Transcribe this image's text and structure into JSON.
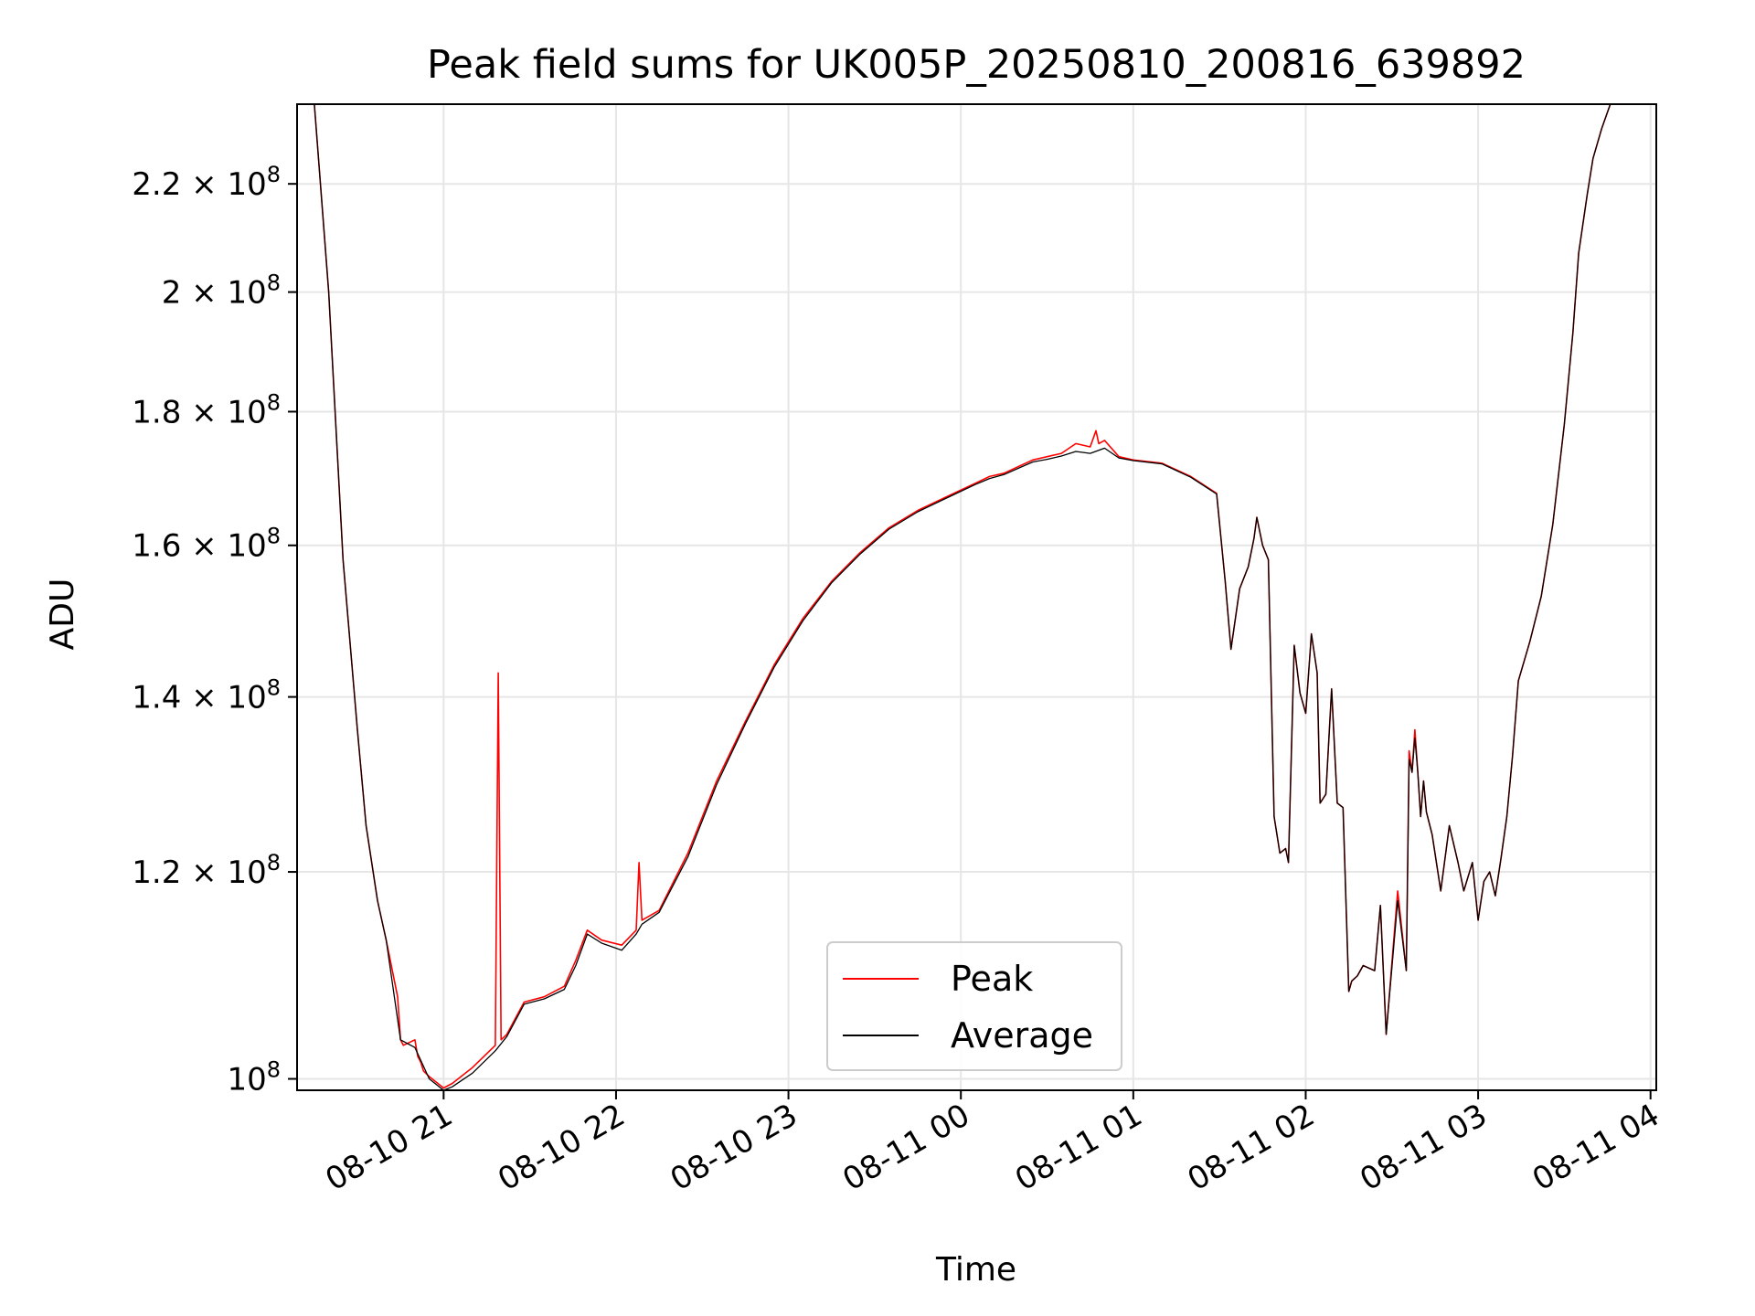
{
  "chart_data": {
    "type": "line",
    "title": "Peak field sums for UK005P_20250810_200816_639892",
    "xlabel": "Time",
    "ylabel": "ADU",
    "yscale": "log",
    "grid": true,
    "legend_position": "lower center",
    "xlim": [
      "2025-08-10 20:09",
      "2025-08-11 04:02"
    ],
    "ylim": [
      99000000,
      236000000
    ],
    "x_ticks": [
      {
        "t": "2025-08-10 21:00",
        "label": "08-10 21"
      },
      {
        "t": "2025-08-10 22:00",
        "label": "08-10 22"
      },
      {
        "t": "2025-08-10 23:00",
        "label": "08-10 23"
      },
      {
        "t": "2025-08-11 00:00",
        "label": "08-11 00"
      },
      {
        "t": "2025-08-11 01:00",
        "label": "08-11 01"
      },
      {
        "t": "2025-08-11 02:00",
        "label": "08-11 02"
      },
      {
        "t": "2025-08-11 03:00",
        "label": "08-11 03"
      },
      {
        "t": "2025-08-11 04:00",
        "label": "08-11 04"
      }
    ],
    "y_ticks": [
      {
        "v": 100000000,
        "mantissa": "",
        "exp": "8"
      },
      {
        "v": 120000000,
        "mantissa": "1.2",
        "exp": "8"
      },
      {
        "v": 140000000,
        "mantissa": "1.4",
        "exp": "8"
      },
      {
        "v": 160000000,
        "mantissa": "1.6",
        "exp": "8"
      },
      {
        "v": 180000000,
        "mantissa": "1.8",
        "exp": "8"
      },
      {
        "v": 200000000,
        "mantissa": "2",
        "exp": "8"
      },
      {
        "v": 220000000,
        "mantissa": "2.2",
        "exp": "8"
      }
    ],
    "series": [
      {
        "name": "Peak",
        "color": "#ff0000",
        "x": [
          "2025-08-10 20:09",
          "2025-08-10 20:12",
          "2025-08-10 20:15",
          "2025-08-10 20:20",
          "2025-08-10 20:25",
          "2025-08-10 20:30",
          "2025-08-10 20:33",
          "2025-08-10 20:37",
          "2025-08-10 20:40",
          "2025-08-10 20:44",
          "2025-08-10 20:45",
          "2025-08-10 20:46",
          "2025-08-10 20:50",
          "2025-08-10 20:51",
          "2025-08-10 20:52",
          "2025-08-10 20:53",
          "2025-08-10 20:55",
          "2025-08-10 21:00",
          "2025-08-10 21:03",
          "2025-08-10 21:10",
          "2025-08-10 21:18",
          "2025-08-10 21:19",
          "2025-08-10 21:20",
          "2025-08-10 21:22",
          "2025-08-10 21:28",
          "2025-08-10 21:35",
          "2025-08-10 21:42",
          "2025-08-10 21:46",
          "2025-08-10 21:50",
          "2025-08-10 21:55",
          "2025-08-10 22:02",
          "2025-08-10 22:07",
          "2025-08-10 22:08",
          "2025-08-10 22:09",
          "2025-08-10 22:15",
          "2025-08-10 22:25",
          "2025-08-10 22:35",
          "2025-08-10 22:45",
          "2025-08-10 22:55",
          "2025-08-10 23:05",
          "2025-08-10 23:15",
          "2025-08-10 23:25",
          "2025-08-10 23:35",
          "2025-08-10 23:45",
          "2025-08-10 23:55",
          "2025-08-11 00:05",
          "2025-08-11 00:10",
          "2025-08-11 00:15",
          "2025-08-11 00:25",
          "2025-08-11 00:30",
          "2025-08-11 00:35",
          "2025-08-11 00:40",
          "2025-08-11 00:45",
          "2025-08-11 00:47",
          "2025-08-11 00:48",
          "2025-08-11 00:50",
          "2025-08-11 00:55",
          "2025-08-11 01:00",
          "2025-08-11 01:10",
          "2025-08-11 01:20",
          "2025-08-11 01:29",
          "2025-08-11 01:32",
          "2025-08-11 01:34",
          "2025-08-11 01:37",
          "2025-08-11 01:40",
          "2025-08-11 01:42",
          "2025-08-11 01:43",
          "2025-08-11 01:45",
          "2025-08-11 01:47",
          "2025-08-11 01:49",
          "2025-08-11 01:51",
          "2025-08-11 01:53",
          "2025-08-11 01:54",
          "2025-08-11 01:56",
          "2025-08-11 01:58",
          "2025-08-11 02:00",
          "2025-08-11 02:02",
          "2025-08-11 02:04",
          "2025-08-11 02:05",
          "2025-08-11 02:07",
          "2025-08-11 02:09",
          "2025-08-11 02:11",
          "2025-08-11 02:13",
          "2025-08-11 02:15",
          "2025-08-11 02:16",
          "2025-08-11 02:18",
          "2025-08-11 02:20",
          "2025-08-11 02:24",
          "2025-08-11 02:26",
          "2025-08-11 02:28",
          "2025-08-11 02:32",
          "2025-08-11 02:35",
          "2025-08-11 02:36",
          "2025-08-11 02:37",
          "2025-08-11 02:38",
          "2025-08-11 02:39",
          "2025-08-11 02:40",
          "2025-08-11 02:41",
          "2025-08-11 02:42",
          "2025-08-11 02:44",
          "2025-08-11 02:47",
          "2025-08-11 02:50",
          "2025-08-11 02:53",
          "2025-08-11 02:55",
          "2025-08-11 02:58",
          "2025-08-11 03:00",
          "2025-08-11 03:02",
          "2025-08-11 03:04",
          "2025-08-11 03:06",
          "2025-08-11 03:08",
          "2025-08-11 03:10",
          "2025-08-11 03:12",
          "2025-08-11 03:14",
          "2025-08-11 03:18",
          "2025-08-11 03:22",
          "2025-08-11 03:26",
          "2025-08-11 03:30",
          "2025-08-11 03:33",
          "2025-08-11 03:35",
          "2025-08-11 03:38",
          "2025-08-11 03:40",
          "2025-08-11 03:43",
          "2025-08-11 03:46",
          "2025-08-11 03:49",
          "2025-08-11 03:52",
          "2025-08-11 04:02"
        ],
        "values": [
          236000000,
          236000000,
          236000000,
          200000000,
          158000000,
          136000000,
          125000000,
          117000000,
          113000000,
          107500000,
          103500000,
          103000000,
          103500000,
          102000000,
          101500000,
          100700000,
          100200000,
          99200000,
          99600000,
          101000000,
          103000000,
          143000000,
          103500000,
          104000000,
          107000000,
          107500000,
          108500000,
          111000000,
          114000000,
          113000000,
          112500000,
          114000000,
          121000000,
          115000000,
          116000000,
          122000000,
          130000000,
          137000000,
          144000000,
          150000000,
          155000000,
          159000000,
          162500000,
          165000000,
          167000000,
          169000000,
          170000000,
          170500000,
          172500000,
          173000000,
          173500000,
          175000000,
          174500000,
          177000000,
          175000000,
          175500000,
          173000000,
          172500000,
          172000000,
          170000000,
          167500000,
          155000000,
          146000000,
          154000000,
          157000000,
          161000000,
          164000000,
          160000000,
          158000000,
          126000000,
          122000000,
          122500000,
          121000000,
          146500000,
          140500000,
          138000000,
          148000000,
          143000000,
          127500000,
          128500000,
          141000000,
          127500000,
          127000000,
          108000000,
          109000000,
          109500000,
          110500000,
          110000000,
          116500000,
          104000000,
          118000000,
          110000000,
          133500000,
          131000000,
          136000000,
          131000000,
          126000000,
          130000000,
          126500000,
          124000000,
          118000000,
          125000000,
          121000000,
          118000000,
          121000000,
          115000000,
          119000000,
          120000000,
          117500000,
          121500000,
          126000000,
          133000000,
          142000000,
          147000000,
          153000000,
          163000000,
          178000000,
          193000000,
          207000000,
          218000000,
          225000000,
          231000000,
          236000000,
          236000000,
          236000000,
          236000000
        ]
      },
      {
        "name": "Average",
        "color": "#000000",
        "x": [
          "2025-08-10 20:09",
          "2025-08-10 20:12",
          "2025-08-10 20:15",
          "2025-08-10 20:20",
          "2025-08-10 20:25",
          "2025-08-10 20:30",
          "2025-08-10 20:33",
          "2025-08-10 20:37",
          "2025-08-10 20:40",
          "2025-08-10 20:45",
          "2025-08-10 20:50",
          "2025-08-10 20:55",
          "2025-08-10 21:00",
          "2025-08-10 21:03",
          "2025-08-10 21:10",
          "2025-08-10 21:18",
          "2025-08-10 21:22",
          "2025-08-10 21:28",
          "2025-08-10 21:35",
          "2025-08-10 21:42",
          "2025-08-10 21:46",
          "2025-08-10 21:50",
          "2025-08-10 21:55",
          "2025-08-10 22:02",
          "2025-08-10 22:07",
          "2025-08-10 22:09",
          "2025-08-10 22:15",
          "2025-08-10 22:25",
          "2025-08-10 22:35",
          "2025-08-10 22:45",
          "2025-08-10 22:55",
          "2025-08-10 23:05",
          "2025-08-10 23:15",
          "2025-08-10 23:25",
          "2025-08-10 23:35",
          "2025-08-10 23:45",
          "2025-08-10 23:55",
          "2025-08-11 00:05",
          "2025-08-11 00:10",
          "2025-08-11 00:15",
          "2025-08-11 00:25",
          "2025-08-11 00:30",
          "2025-08-11 00:35",
          "2025-08-11 00:40",
          "2025-08-11 00:45",
          "2025-08-11 00:50",
          "2025-08-11 00:55",
          "2025-08-11 01:00",
          "2025-08-11 01:10",
          "2025-08-11 01:20",
          "2025-08-11 01:29",
          "2025-08-11 01:32",
          "2025-08-11 01:34",
          "2025-08-11 01:37",
          "2025-08-11 01:40",
          "2025-08-11 01:42",
          "2025-08-11 01:43",
          "2025-08-11 01:45",
          "2025-08-11 01:47",
          "2025-08-11 01:49",
          "2025-08-11 01:51",
          "2025-08-11 01:53",
          "2025-08-11 01:54",
          "2025-08-11 01:56",
          "2025-08-11 01:58",
          "2025-08-11 02:00",
          "2025-08-11 02:02",
          "2025-08-11 02:04",
          "2025-08-11 02:05",
          "2025-08-11 02:07",
          "2025-08-11 02:09",
          "2025-08-11 02:11",
          "2025-08-11 02:13",
          "2025-08-11 02:15",
          "2025-08-11 02:16",
          "2025-08-11 02:18",
          "2025-08-11 02:20",
          "2025-08-11 02:24",
          "2025-08-11 02:26",
          "2025-08-11 02:28",
          "2025-08-11 02:32",
          "2025-08-11 02:35",
          "2025-08-11 02:36",
          "2025-08-11 02:37",
          "2025-08-11 02:38",
          "2025-08-11 02:39",
          "2025-08-11 02:40",
          "2025-08-11 02:41",
          "2025-08-11 02:42",
          "2025-08-11 02:44",
          "2025-08-11 02:47",
          "2025-08-11 02:50",
          "2025-08-11 02:53",
          "2025-08-11 02:55",
          "2025-08-11 02:58",
          "2025-08-11 03:00",
          "2025-08-11 03:02",
          "2025-08-11 03:04",
          "2025-08-11 03:06",
          "2025-08-11 03:08",
          "2025-08-11 03:10",
          "2025-08-11 03:12",
          "2025-08-11 03:14",
          "2025-08-11 03:18",
          "2025-08-11 03:22",
          "2025-08-11 03:26",
          "2025-08-11 03:30",
          "2025-08-11 03:33",
          "2025-08-11 03:35",
          "2025-08-11 03:38",
          "2025-08-11 03:40",
          "2025-08-11 03:43",
          "2025-08-11 03:46",
          "2025-08-11 03:49",
          "2025-08-11 03:52",
          "2025-08-11 04:02"
        ],
        "values": [
          236000000,
          236000000,
          236000000,
          200000000,
          158000000,
          136000000,
          125000000,
          117000000,
          113000000,
          103500000,
          102800000,
          100000000,
          99000000,
          99300000,
          100500000,
          102500000,
          103800000,
          106800000,
          107300000,
          108200000,
          110500000,
          113600000,
          112700000,
          112000000,
          113600000,
          114600000,
          115800000,
          121600000,
          129600000,
          136700000,
          143700000,
          149700000,
          154800000,
          158800000,
          162300000,
          164800000,
          166800000,
          168800000,
          169700000,
          170300000,
          172200000,
          172600000,
          173100000,
          173800000,
          173500000,
          174300000,
          172800000,
          172400000,
          171900000,
          169900000,
          167400000,
          155000000,
          146000000,
          154000000,
          157000000,
          161000000,
          164000000,
          160000000,
          158000000,
          126000000,
          122000000,
          122500000,
          121000000,
          146500000,
          140500000,
          138000000,
          148000000,
          143000000,
          127500000,
          128500000,
          141000000,
          127500000,
          127000000,
          108000000,
          109000000,
          109500000,
          110500000,
          110000000,
          116500000,
          104000000,
          117000000,
          110000000,
          132500000,
          131000000,
          135000000,
          131000000,
          126000000,
          130000000,
          126500000,
          124000000,
          118000000,
          125000000,
          121000000,
          118000000,
          121000000,
          115000000,
          119000000,
          120000000,
          117500000,
          121500000,
          126000000,
          133000000,
          142000000,
          147000000,
          153000000,
          163000000,
          178000000,
          193000000,
          207000000,
          218000000,
          225000000,
          231000000,
          236000000,
          236000000,
          236000000,
          236000000
        ]
      }
    ]
  }
}
